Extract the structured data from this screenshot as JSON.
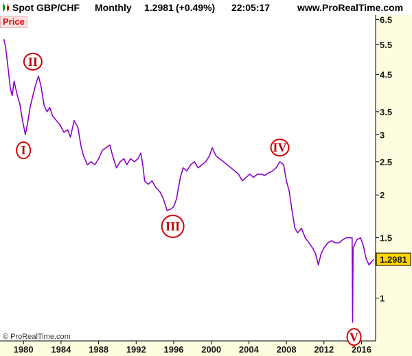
{
  "header": {
    "symbol": "Spot GBP/CHF",
    "period": "Monthly",
    "price": "1.2981",
    "change": "(+0.49%)",
    "time": "22:05:17",
    "site": "www.ProRealTime.com"
  },
  "price_tag": "Price",
  "credit": "© ProRealTime.com",
  "colors": {
    "series": "#8b00c8",
    "wave": "#d40000",
    "axis": "#000000",
    "last_price_bg": "#ffd400",
    "panel_bg": "#fffde0"
  },
  "chart_data": {
    "type": "line",
    "scale": "log",
    "x_range": [
      1977.5,
      2017.5
    ],
    "ylim": [
      0.75,
      6.7
    ],
    "x_ticks": [
      1980,
      1984,
      1988,
      1992,
      1996,
      2000,
      2004,
      2008,
      2012,
      2016
    ],
    "y_ticks": [
      1,
      1.5,
      2,
      2.5,
      3,
      3.5,
      4.5,
      5.5,
      6.5
    ],
    "last_value": "1.2981",
    "series": [
      {
        "points": [
          [
            1977.9,
            5.7
          ],
          [
            1978.1,
            5.4
          ],
          [
            1978.4,
            4.6
          ],
          [
            1978.6,
            4.1
          ],
          [
            1978.8,
            3.9
          ],
          [
            1979.0,
            4.3
          ],
          [
            1979.3,
            3.95
          ],
          [
            1979.6,
            3.7
          ],
          [
            1979.9,
            3.3
          ],
          [
            1980.2,
            3.0
          ],
          [
            1980.4,
            3.2
          ],
          [
            1980.7,
            3.6
          ],
          [
            1981.0,
            3.9
          ],
          [
            1981.3,
            4.2
          ],
          [
            1981.6,
            4.45
          ],
          [
            1981.9,
            4.1
          ],
          [
            1982.2,
            3.65
          ],
          [
            1982.5,
            3.5
          ],
          [
            1982.8,
            3.6
          ],
          [
            1983.1,
            3.4
          ],
          [
            1983.5,
            3.3
          ],
          [
            1983.9,
            3.2
          ],
          [
            1984.3,
            3.05
          ],
          [
            1984.7,
            3.1
          ],
          [
            1985.0,
            2.95
          ],
          [
            1985.4,
            3.3
          ],
          [
            1985.8,
            3.15
          ],
          [
            1986.1,
            2.8
          ],
          [
            1986.4,
            2.6
          ],
          [
            1986.8,
            2.45
          ],
          [
            1987.2,
            2.5
          ],
          [
            1987.6,
            2.45
          ],
          [
            1988.0,
            2.55
          ],
          [
            1988.4,
            2.7
          ],
          [
            1988.8,
            2.75
          ],
          [
            1989.2,
            2.8
          ],
          [
            1989.5,
            2.6
          ],
          [
            1989.9,
            2.4
          ],
          [
            1990.3,
            2.5
          ],
          [
            1990.7,
            2.55
          ],
          [
            1991.0,
            2.45
          ],
          [
            1991.4,
            2.55
          ],
          [
            1991.8,
            2.5
          ],
          [
            1992.2,
            2.55
          ],
          [
            1992.5,
            2.65
          ],
          [
            1992.7,
            2.45
          ],
          [
            1992.9,
            2.2
          ],
          [
            1993.3,
            2.15
          ],
          [
            1993.7,
            2.2
          ],
          [
            1994.1,
            2.1
          ],
          [
            1994.5,
            2.05
          ],
          [
            1994.9,
            1.95
          ],
          [
            1995.3,
            1.8
          ],
          [
            1995.7,
            1.82
          ],
          [
            1996.0,
            1.85
          ],
          [
            1996.3,
            1.95
          ],
          [
            1996.7,
            2.25
          ],
          [
            1997.0,
            2.4
          ],
          [
            1997.4,
            2.35
          ],
          [
            1997.8,
            2.45
          ],
          [
            1998.2,
            2.5
          ],
          [
            1998.6,
            2.4
          ],
          [
            1999.0,
            2.45
          ],
          [
            1999.4,
            2.5
          ],
          [
            1999.8,
            2.6
          ],
          [
            2000.1,
            2.75
          ],
          [
            2000.5,
            2.6
          ],
          [
            2000.9,
            2.55
          ],
          [
            2001.3,
            2.5
          ],
          [
            2001.7,
            2.45
          ],
          [
            2002.1,
            2.4
          ],
          [
            2002.5,
            2.35
          ],
          [
            2002.9,
            2.3
          ],
          [
            2003.3,
            2.2
          ],
          [
            2003.7,
            2.25
          ],
          [
            2004.1,
            2.3
          ],
          [
            2004.5,
            2.25
          ],
          [
            2004.9,
            2.3
          ],
          [
            2005.3,
            2.3
          ],
          [
            2005.7,
            2.28
          ],
          [
            2006.1,
            2.32
          ],
          [
            2006.5,
            2.35
          ],
          [
            2006.9,
            2.4
          ],
          [
            2007.3,
            2.5
          ],
          [
            2007.7,
            2.45
          ],
          [
            2008.0,
            2.2
          ],
          [
            2008.3,
            2.05
          ],
          [
            2008.6,
            1.8
          ],
          [
            2008.9,
            1.6
          ],
          [
            2009.2,
            1.55
          ],
          [
            2009.6,
            1.6
          ],
          [
            2010.0,
            1.5
          ],
          [
            2010.4,
            1.45
          ],
          [
            2010.8,
            1.4
          ],
          [
            2011.1,
            1.35
          ],
          [
            2011.4,
            1.25
          ],
          [
            2011.7,
            1.35
          ],
          [
            2012.0,
            1.4
          ],
          [
            2012.4,
            1.45
          ],
          [
            2012.8,
            1.47
          ],
          [
            2013.2,
            1.45
          ],
          [
            2013.6,
            1.45
          ],
          [
            2014.0,
            1.48
          ],
          [
            2014.4,
            1.5
          ],
          [
            2014.8,
            1.5
          ],
          [
            2015.0,
            1.5
          ],
          [
            2015.05,
            0.85
          ],
          [
            2015.1,
            1.4
          ],
          [
            2015.5,
            1.48
          ],
          [
            2015.9,
            1.5
          ],
          [
            2016.2,
            1.42
          ],
          [
            2016.5,
            1.3
          ],
          [
            2016.8,
            1.25
          ],
          [
            2017.1,
            1.28
          ],
          [
            2017.3,
            1.2981
          ]
        ]
      }
    ],
    "wave_labels": [
      {
        "text": "I",
        "x": 1980.0,
        "y": 2.7
      },
      {
        "text": "II",
        "x": 1981.0,
        "y": 4.9
      },
      {
        "text": "III",
        "x": 1995.9,
        "y": 1.62
      },
      {
        "text": "IV",
        "x": 2007.3,
        "y": 2.75
      },
      {
        "text": "V",
        "x": 2015.2,
        "y": 0.77
      }
    ]
  }
}
